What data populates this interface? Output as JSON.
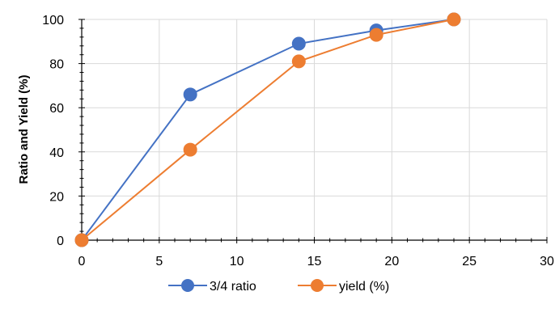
{
  "chart_data": {
    "type": "line",
    "title": "",
    "xlabel": "",
    "ylabel": "Ratio and Yield (%)",
    "xlim": [
      0,
      30
    ],
    "ylim": [
      0,
      100
    ],
    "xticks": [
      0,
      5,
      10,
      15,
      20,
      25,
      30
    ],
    "yticks": [
      0,
      20,
      40,
      60,
      80,
      100
    ],
    "grid": true,
    "legend_position": "bottom",
    "series": [
      {
        "name": "3/4 ratio",
        "color": "#4472C4",
        "x": [
          0,
          7,
          14,
          19,
          24
        ],
        "values": [
          0,
          66,
          89,
          95,
          100
        ]
      },
      {
        "name": "yield (%)",
        "color": "#ED7D31",
        "x": [
          0,
          7,
          14,
          19,
          24
        ],
        "values": [
          0,
          41,
          81,
          93,
          100
        ]
      }
    ]
  }
}
